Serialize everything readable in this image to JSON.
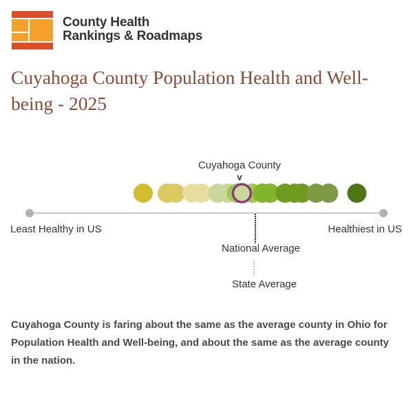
{
  "brand": {
    "line1": "County Health",
    "line2": "Rankings & Roadmaps",
    "icon": "chr-logo-icon",
    "colors": {
      "orange": "#f5a02a",
      "red": "#d94f2a"
    }
  },
  "title": "Cuyahoga County Population Health and Well-being - 2025",
  "scale": {
    "left_label": "Least Healthy in US",
    "right_label": "Healthiest in US",
    "county_label": "Cuyahoga County",
    "pointer": "v",
    "national_label": "National Average",
    "state_label": "State Average",
    "colors": {
      "axis": "#b3b3b3",
      "highlight_ring": "#8b3a7a",
      "categories": [
        "#d2bd2f",
        "#dccb62",
        "#e8dea0",
        "#c9d79b",
        "#a3c556",
        "#82b42c",
        "#6f9c1f",
        "#7e9a44",
        "#4f7416"
      ]
    },
    "counties": [
      {
        "cat": 0,
        "pos": 0.321
      },
      {
        "cat": 1,
        "pos": 0.389
      },
      {
        "cat": 1,
        "pos": 0.412
      },
      {
        "cat": 2,
        "pos": 0.46
      },
      {
        "cat": 2,
        "pos": 0.487
      },
      {
        "cat": 3,
        "pos": 0.532
      },
      {
        "cat": 3,
        "pos": 0.56
      },
      {
        "cat": 4,
        "pos": 0.585
      },
      {
        "cat": 4,
        "pos": 0.63
      },
      {
        "cat": 5,
        "pos": 0.658
      },
      {
        "cat": 5,
        "pos": 0.68
      },
      {
        "cat": 6,
        "pos": 0.722
      },
      {
        "cat": 6,
        "pos": 0.75
      },
      {
        "cat": 6,
        "pos": 0.77
      },
      {
        "cat": 7,
        "pos": 0.81
      },
      {
        "cat": 7,
        "pos": 0.845
      },
      {
        "cat": 8,
        "pos": 0.925
      }
    ],
    "county_pos": 0.6,
    "national_pos": 0.639,
    "state_pos": 0.635
  },
  "summary": "Cuyahoga County is faring about the same as the average county in Ohio for Population Health and Well-being, and about the same as the average county in the nation."
}
